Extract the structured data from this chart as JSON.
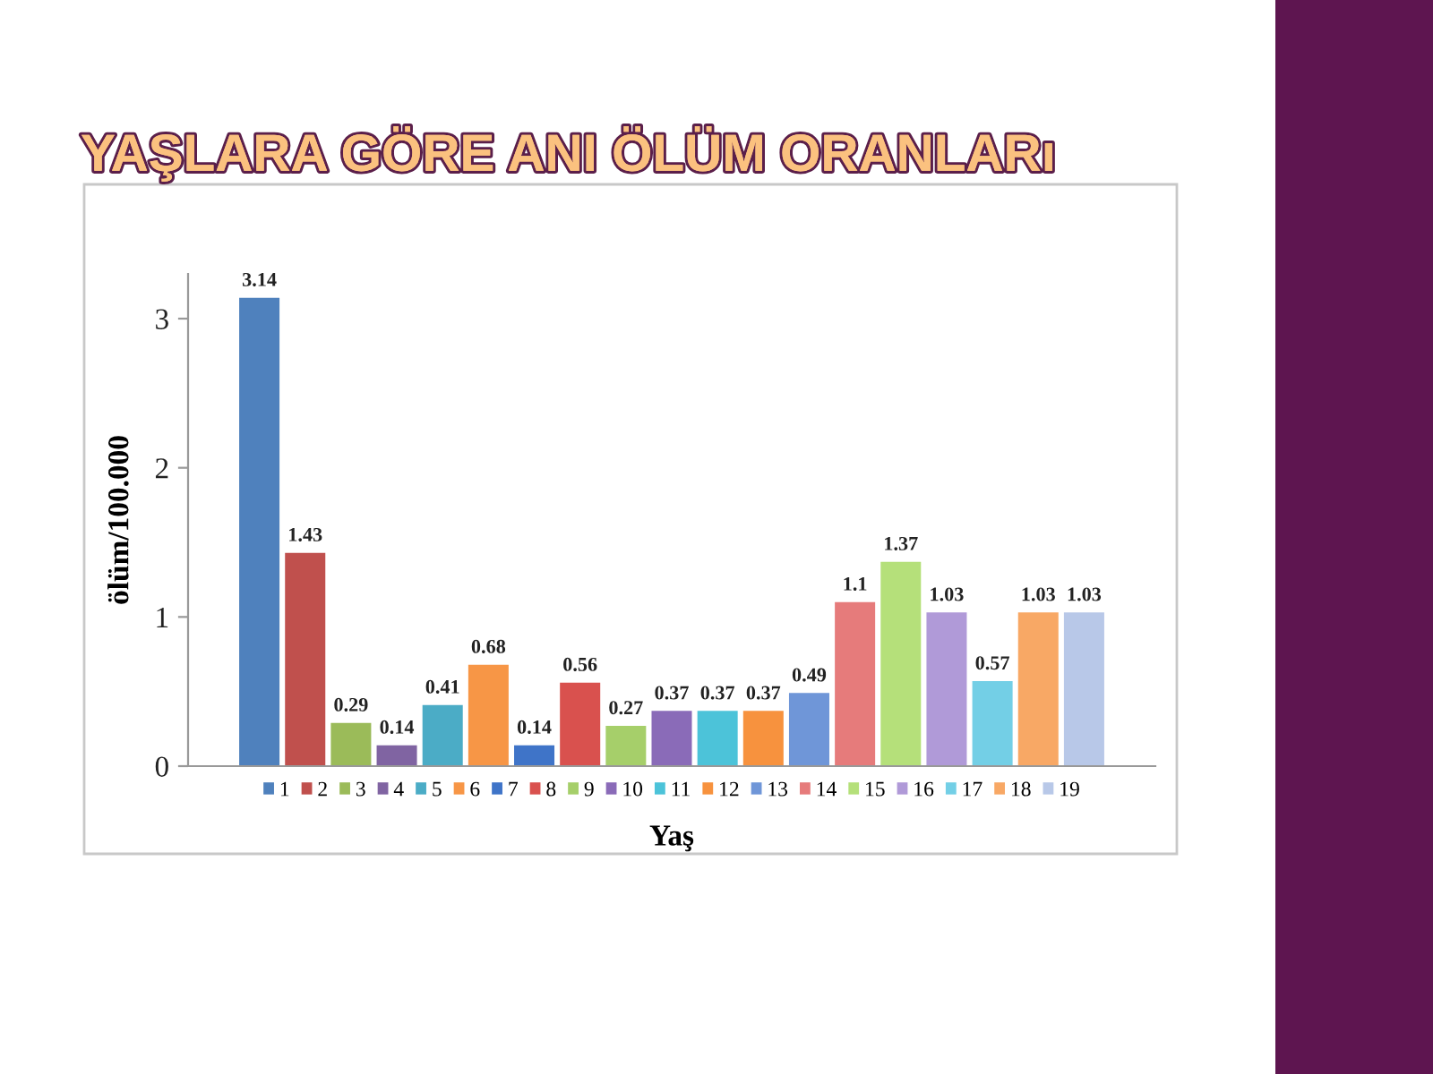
{
  "chart_data": {
    "type": "bar",
    "title": "YAŞLARA GÖRE ANI ÖLÜM ORANLARı",
    "xlabel": "Yaş",
    "ylabel": "ölüm/100.000",
    "categories": [
      null
    ],
    "series": [
      {
        "name": "1",
        "color": "#4f81bd",
        "values": [
          3.14
        ]
      },
      {
        "name": "2",
        "color": "#c0504d",
        "values": [
          1.43
        ]
      },
      {
        "name": "3",
        "color": "#9bbb59",
        "values": [
          0.29
        ]
      },
      {
        "name": "4",
        "color": "#8064a2",
        "values": [
          0.14
        ]
      },
      {
        "name": "5",
        "color": "#4bacc6",
        "values": [
          0.41
        ]
      },
      {
        "name": "6",
        "color": "#f79646",
        "values": [
          0.68
        ]
      },
      {
        "name": "7",
        "color": "#3f74c8",
        "values": [
          0.14
        ]
      },
      {
        "name": "8",
        "color": "#d9514e",
        "values": [
          0.56
        ]
      },
      {
        "name": "9",
        "color": "#a6cf6a",
        "values": [
          0.27
        ]
      },
      {
        "name": "10",
        "color": "#8a6bb8",
        "values": [
          0.37
        ]
      },
      {
        "name": "11",
        "color": "#4cc3d9",
        "values": [
          0.37
        ]
      },
      {
        "name": "12",
        "color": "#f7923e",
        "values": [
          0.37
        ]
      },
      {
        "name": "13",
        "color": "#6f96d8",
        "values": [
          0.49
        ]
      },
      {
        "name": "14",
        "color": "#e67b7b",
        "values": [
          1.1
        ]
      },
      {
        "name": "15",
        "color": "#b5e07a",
        "values": [
          1.37
        ]
      },
      {
        "name": "16",
        "color": "#b09ad8",
        "values": [
          1.03
        ]
      },
      {
        "name": "17",
        "color": "#73cfe6",
        "values": [
          0.57
        ]
      },
      {
        "name": "18",
        "color": "#f8a865",
        "values": [
          1.03
        ]
      },
      {
        "name": "19",
        "color": "#b8c8e8",
        "values": [
          1.03
        ]
      }
    ],
    "ylim": [
      0,
      3.3
    ],
    "yticks": [
      0,
      1,
      2,
      3
    ],
    "data_labels": true,
    "legend": "bottom"
  }
}
